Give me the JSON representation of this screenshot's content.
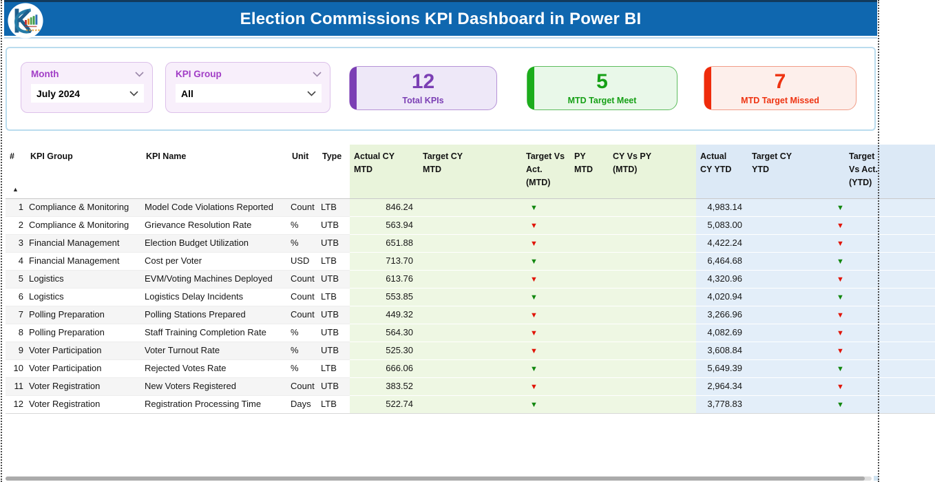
{
  "header": {
    "title": "Election Commissions KPI Dashboard in Power BI"
  },
  "slicers": {
    "month": {
      "label": "Month",
      "value": "July 2024"
    },
    "kpi_group": {
      "label": "KPI Group",
      "value": "All"
    }
  },
  "cards": [
    {
      "value": "12",
      "label": "Total KPIs",
      "accent_color": "#7b3fb4",
      "bg_color": "#eee8f8",
      "border_color": "#b591d6",
      "text_color": "#7b3fb4"
    },
    {
      "value": "5",
      "label": "MTD Target Meet",
      "accent_color": "#1cad1c",
      "bg_color": "#e9f8e9",
      "border_color": "#5cbc5c",
      "text_color": "#16a016"
    },
    {
      "value": "7",
      "label": "MTD Target Missed",
      "accent_color": "#ef2b0b",
      "bg_color": "#fdefeb",
      "border_color": "#f19c86",
      "text_color": "#ee3311"
    }
  ],
  "table": {
    "sort_indicator": "▲",
    "arrow_glyph": "▼",
    "arrow_colors": {
      "green": "#12870f",
      "red": "#e01407"
    },
    "columns": [
      {
        "key": "n",
        "label": "#"
      },
      {
        "key": "group",
        "label": "KPI Group"
      },
      {
        "key": "name",
        "label": "KPI Name"
      },
      {
        "key": "unit",
        "label": "Unit"
      },
      {
        "key": "type",
        "label": "Type"
      },
      {
        "key": "actual_cy_mtd",
        "label": "Actual CY\nMTD",
        "section": "mtd"
      },
      {
        "key": "target_cy_mtd",
        "label": "Target CY\nMTD",
        "section": "mtd"
      },
      {
        "key": "target_vs_act_mtd",
        "label": "Target Vs\nAct.\n(MTD)",
        "section": "mtd",
        "arrow": true
      },
      {
        "key": "py_mtd",
        "label": "PY MTD",
        "section": "mtd"
      },
      {
        "key": "cy_vs_py_mtd",
        "label": "CY Vs PY\n(MTD)",
        "section": "mtd"
      },
      {
        "key": "actual_cy_ytd",
        "label": "Actual\nCY YTD",
        "section": "ytd"
      },
      {
        "key": "target_cy_ytd",
        "label": "Target CY\nYTD",
        "section": "ytd"
      },
      {
        "key": "target_vs_act_ytd",
        "label": "Target\nVs Act.\n(YTD)",
        "section": "ytd",
        "arrow": true
      }
    ],
    "rows": [
      {
        "n": "1",
        "group": "Compliance & Monitoring",
        "name": "Model Code Violations Reported",
        "unit": "Count",
        "type": "LTB",
        "actual_cy_mtd": "846.24",
        "target_cy_mtd": "",
        "target_vs_act_mtd": "green",
        "py_mtd": "",
        "cy_vs_py_mtd": "",
        "actual_cy_ytd": "4,983.14",
        "target_cy_ytd": "",
        "target_vs_act_ytd": "green"
      },
      {
        "n": "2",
        "group": "Compliance & Monitoring",
        "name": "Grievance Resolution Rate",
        "unit": "%",
        "type": "UTB",
        "actual_cy_mtd": "563.94",
        "target_cy_mtd": "",
        "target_vs_act_mtd": "red",
        "py_mtd": "",
        "cy_vs_py_mtd": "",
        "actual_cy_ytd": "5,083.00",
        "target_cy_ytd": "",
        "target_vs_act_ytd": "red"
      },
      {
        "n": "3",
        "group": "Financial Management",
        "name": "Election Budget Utilization",
        "unit": "%",
        "type": "UTB",
        "actual_cy_mtd": "651.88",
        "target_cy_mtd": "",
        "target_vs_act_mtd": "red",
        "py_mtd": "",
        "cy_vs_py_mtd": "",
        "actual_cy_ytd": "4,422.24",
        "target_cy_ytd": "",
        "target_vs_act_ytd": "red"
      },
      {
        "n": "4",
        "group": "Financial Management",
        "name": "Cost per Voter",
        "unit": "USD",
        "type": "LTB",
        "actual_cy_mtd": "713.70",
        "target_cy_mtd": "",
        "target_vs_act_mtd": "green",
        "py_mtd": "",
        "cy_vs_py_mtd": "",
        "actual_cy_ytd": "6,464.68",
        "target_cy_ytd": "",
        "target_vs_act_ytd": "green"
      },
      {
        "n": "5",
        "group": "Logistics",
        "name": "EVM/Voting Machines Deployed",
        "unit": "Count",
        "type": "UTB",
        "actual_cy_mtd": "613.76",
        "target_cy_mtd": "",
        "target_vs_act_mtd": "red",
        "py_mtd": "",
        "cy_vs_py_mtd": "",
        "actual_cy_ytd": "4,320.96",
        "target_cy_ytd": "",
        "target_vs_act_ytd": "red"
      },
      {
        "n": "6",
        "group": "Logistics",
        "name": "Logistics Delay Incidents",
        "unit": "Count",
        "type": "LTB",
        "actual_cy_mtd": "553.85",
        "target_cy_mtd": "",
        "target_vs_act_mtd": "green",
        "py_mtd": "",
        "cy_vs_py_mtd": "",
        "actual_cy_ytd": "4,020.94",
        "target_cy_ytd": "",
        "target_vs_act_ytd": "green"
      },
      {
        "n": "7",
        "group": "Polling Preparation",
        "name": "Polling Stations Prepared",
        "unit": "Count",
        "type": "UTB",
        "actual_cy_mtd": "449.32",
        "target_cy_mtd": "",
        "target_vs_act_mtd": "red",
        "py_mtd": "",
        "cy_vs_py_mtd": "",
        "actual_cy_ytd": "3,266.96",
        "target_cy_ytd": "",
        "target_vs_act_ytd": "red"
      },
      {
        "n": "8",
        "group": "Polling Preparation",
        "name": "Staff Training Completion Rate",
        "unit": "%",
        "type": "UTB",
        "actual_cy_mtd": "564.30",
        "target_cy_mtd": "",
        "target_vs_act_mtd": "red",
        "py_mtd": "",
        "cy_vs_py_mtd": "",
        "actual_cy_ytd": "4,082.69",
        "target_cy_ytd": "",
        "target_vs_act_ytd": "red"
      },
      {
        "n": "9",
        "group": "Voter Participation",
        "name": "Voter Turnout Rate",
        "unit": "%",
        "type": "UTB",
        "actual_cy_mtd": "525.30",
        "target_cy_mtd": "",
        "target_vs_act_mtd": "red",
        "py_mtd": "",
        "cy_vs_py_mtd": "",
        "actual_cy_ytd": "3,608.84",
        "target_cy_ytd": "",
        "target_vs_act_ytd": "red"
      },
      {
        "n": "10",
        "group": "Voter Participation",
        "name": "Rejected Votes Rate",
        "unit": "%",
        "type": "LTB",
        "actual_cy_mtd": "666.06",
        "target_cy_mtd": "",
        "target_vs_act_mtd": "green",
        "py_mtd": "",
        "cy_vs_py_mtd": "",
        "actual_cy_ytd": "5,649.39",
        "target_cy_ytd": "",
        "target_vs_act_ytd": "green"
      },
      {
        "n": "11",
        "group": "Voter Registration",
        "name": "New Voters Registered",
        "unit": "Count",
        "type": "UTB",
        "actual_cy_mtd": "383.52",
        "target_cy_mtd": "",
        "target_vs_act_mtd": "red",
        "py_mtd": "",
        "cy_vs_py_mtd": "",
        "actual_cy_ytd": "2,964.34",
        "target_cy_ytd": "",
        "target_vs_act_ytd": "red"
      },
      {
        "n": "12",
        "group": "Voter Registration",
        "name": "Registration Processing Time",
        "unit": "Days",
        "type": "LTB",
        "actual_cy_mtd": "522.74",
        "target_cy_mtd": "",
        "target_vs_act_mtd": "green",
        "py_mtd": "",
        "cy_vs_py_mtd": "",
        "actual_cy_ytd": "3,778.83",
        "target_cy_ytd": "",
        "target_vs_act_ytd": "green"
      }
    ]
  }
}
